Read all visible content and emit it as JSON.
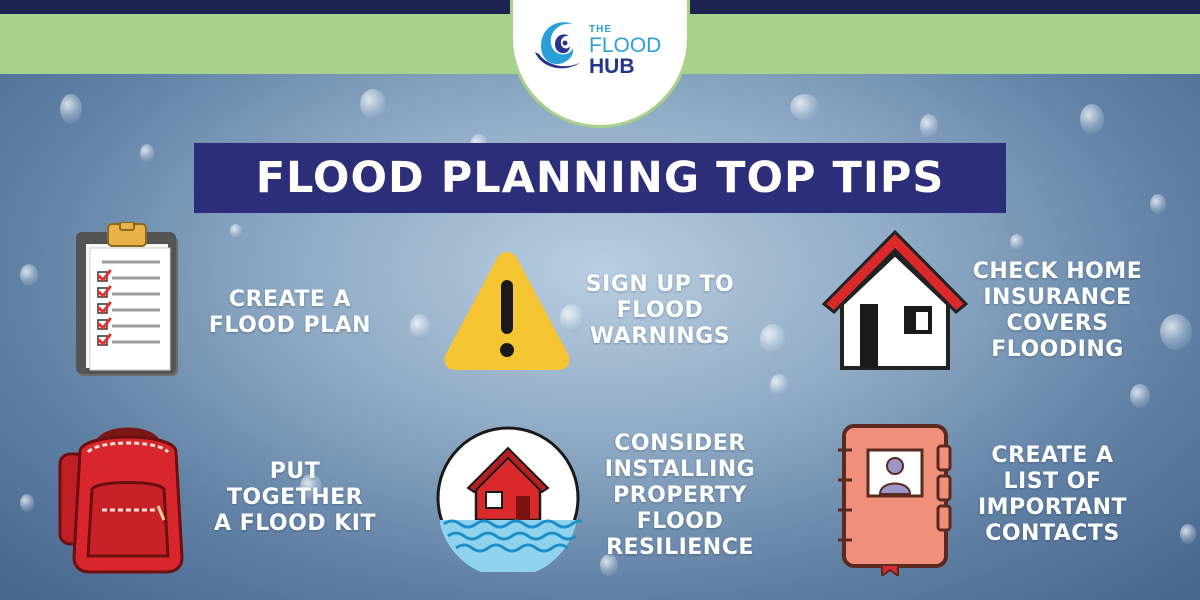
{
  "brand": {
    "the": "THE",
    "flood": "FLOOD",
    "hub": "HUB"
  },
  "title": "FLOOD PLANNING TOP TIPS",
  "tips": [
    {
      "icon": "clipboard-icon",
      "lines": [
        "CREATE A",
        "FLOOD PLAN"
      ]
    },
    {
      "icon": "warning-icon",
      "lines": [
        "SIGN UP TO",
        "FLOOD",
        "WARNINGS"
      ]
    },
    {
      "icon": "house-icon",
      "lines": [
        "CHECK HOME",
        "INSURANCE",
        "COVERS",
        "FLOODING"
      ]
    },
    {
      "icon": "backpack-icon",
      "lines": [
        "PUT",
        "TOGETHER",
        "A FLOOD KIT"
      ]
    },
    {
      "icon": "flooded-house-icon",
      "lines": [
        "CONSIDER",
        "INSTALLING",
        "PROPERTY",
        "FLOOD",
        "RESILIENCE"
      ]
    },
    {
      "icon": "address-book-icon",
      "lines": [
        "CREATE A",
        "LIST OF",
        "IMPORTANT",
        "CONTACTS"
      ]
    }
  ],
  "colors": {
    "navy": "#2c2e79",
    "green": "#a8d18a",
    "brand_blue": "#2aa0d8",
    "warning_yellow": "#f6c533",
    "roof_red": "#d9292b",
    "backpack_red": "#d8262c",
    "book_orange": "#f0907a"
  }
}
